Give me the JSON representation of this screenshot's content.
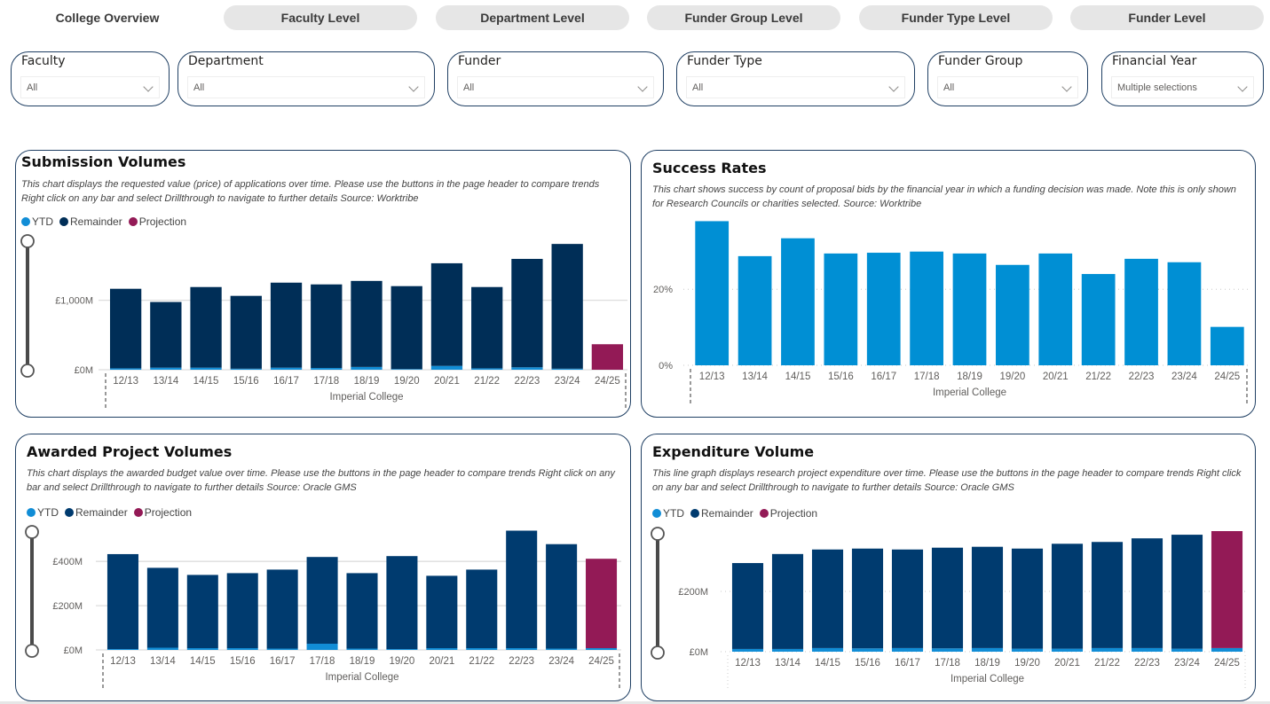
{
  "nav": {
    "tabs": [
      {
        "label": "College Overview",
        "active": true
      },
      {
        "label": "Faculty Level",
        "active": false
      },
      {
        "label": "Department Level",
        "active": false
      },
      {
        "label": "Funder Group Level",
        "active": false
      },
      {
        "label": "Funder Type Level",
        "active": false
      },
      {
        "label": "Funder Level",
        "active": false
      }
    ]
  },
  "slicers": [
    {
      "label": "Faculty",
      "value": "All"
    },
    {
      "label": "Department",
      "value": "All"
    },
    {
      "label": "Funder",
      "value": "All"
    },
    {
      "label": "Funder Type",
      "value": "All"
    },
    {
      "label": "Funder Group",
      "value": "All"
    },
    {
      "label": "Financial Year",
      "value": "Multiple selections"
    }
  ],
  "colors": {
    "ytd": "#118dd6",
    "remainder_submission": "#002e57",
    "remainder": "#003b6f",
    "projection": "#931a56",
    "success": "#008fd4",
    "border": "#1f3f63"
  },
  "legend": {
    "ytd": "YTD",
    "remainder": "Remainder",
    "projection": "Projection"
  },
  "chart_data": [
    {
      "id": "submission",
      "type": "bar",
      "stacked": true,
      "title": "Submission Volumes",
      "description": "This chart displays the requested value (price) of applications over time. Please use the buttons in the page header to compare trends Right click on any bar and select Drillthrough to navigate to further details Source: Worktribe",
      "categories": [
        "12/13",
        "13/14",
        "14/15",
        "15/16",
        "16/17",
        "17/18",
        "18/19",
        "19/20",
        "20/21",
        "21/22",
        "22/23",
        "23/24",
        "24/25"
      ],
      "series": [
        {
          "name": "YTD",
          "values": [
            20,
            30,
            30,
            15,
            30,
            25,
            40,
            10,
            55,
            20,
            35,
            15,
            0
          ]
        },
        {
          "name": "Remainder",
          "values": [
            1145,
            945,
            1160,
            1048,
            1223,
            1203,
            1238,
            1193,
            1477,
            1170,
            1560,
            1795,
            0
          ]
        },
        {
          "name": "Projection",
          "values": [
            0,
            0,
            0,
            0,
            0,
            0,
            0,
            0,
            0,
            0,
            0,
            0,
            367
          ]
        }
      ],
      "xlabel": "Imperial College",
      "ylabel": "",
      "yticks": [
        {
          "value": 0,
          "label": "£0M"
        },
        {
          "value": 1000,
          "label": "£1,000M"
        }
      ],
      "ylim": [
        0,
        1850
      ],
      "grid": true,
      "legend_position": "top-left"
    },
    {
      "id": "success",
      "type": "bar",
      "title": "Success Rates",
      "description": "This chart shows success by count of proposal bids by the financial year in which a funding decision was made. Note this is only shown for Research Councils or charities selected. Source: Worktribe",
      "categories": [
        "12/13",
        "13/14",
        "14/15",
        "15/16",
        "16/17",
        "17/18",
        "18/19",
        "19/20",
        "20/21",
        "21/22",
        "22/23",
        "23/24",
        "24/25"
      ],
      "values": [
        37.9,
        28.7,
        33.4,
        29.4,
        29.6,
        29.9,
        29.4,
        26.4,
        29.4,
        24.0,
        28.0,
        27.1,
        10.1
      ],
      "xlabel": "Imperial College",
      "ylabel": "",
      "yticks": [
        {
          "value": 0,
          "label": "0%"
        },
        {
          "value": 20,
          "label": "20%"
        }
      ],
      "ylim": [
        0,
        38
      ],
      "grid": true
    },
    {
      "id": "awarded",
      "type": "bar",
      "stacked": true,
      "title": "Awarded Project Volumes",
      "description": "This chart displays the awarded budget value over time. Please use the buttons in the page header to compare trends Right click on any bar and select Drillthrough to navigate to further details Source: Oracle GMS",
      "categories": [
        "12/13",
        "13/14",
        "14/15",
        "15/16",
        "16/17",
        "17/18",
        "18/19",
        "19/20",
        "20/21",
        "21/22",
        "22/23",
        "23/24",
        "24/25"
      ],
      "series": [
        {
          "name": "YTD",
          "values": [
            4,
            10,
            8,
            8,
            6,
            28,
            6,
            4,
            8,
            8,
            8,
            6,
            8
          ]
        },
        {
          "name": "Remainder",
          "values": [
            429,
            361,
            331,
            339,
            357,
            392,
            341,
            420,
            327,
            355,
            531,
            472,
            0
          ]
        },
        {
          "name": "Projection",
          "values": [
            0,
            0,
            0,
            0,
            0,
            0,
            0,
            0,
            0,
            0,
            0,
            0,
            404
          ]
        }
      ],
      "xlabel": "Imperial College",
      "ylabel": "",
      "yticks": [
        {
          "value": 0,
          "label": "£0M"
        },
        {
          "value": 200,
          "label": "£200M"
        },
        {
          "value": 400,
          "label": "£400M"
        }
      ],
      "ylim": [
        0,
        545
      ],
      "grid": true,
      "legend_position": "top-left"
    },
    {
      "id": "expenditure",
      "type": "bar",
      "stacked": true,
      "title": "Expenditure Volume",
      "description": "This line graph displays research project expenditure over time. Please use the buttons in the page header to compare trends Right click on any bar and select Drillthrough to navigate to further details Source: Oracle GMS",
      "categories": [
        "12/13",
        "13/14",
        "14/15",
        "15/16",
        "16/17",
        "17/18",
        "18/19",
        "19/20",
        "20/21",
        "21/22",
        "22/23",
        "23/24",
        "24/25"
      ],
      "series": [
        {
          "name": "YTD",
          "values": [
            9,
            9,
            12,
            11,
            12,
            11,
            12,
            10,
            10,
            12,
            12,
            10,
            12
          ]
        },
        {
          "name": "Remainder",
          "values": [
            285,
            315,
            327,
            331,
            327,
            334,
            336,
            332,
            348,
            352,
            364,
            378,
            0
          ]
        },
        {
          "name": "Projection",
          "values": [
            0,
            0,
            0,
            0,
            0,
            0,
            0,
            0,
            0,
            0,
            0,
            0,
            388
          ]
        }
      ],
      "xlabel": "Imperial College",
      "ylabel": "",
      "yticks": [
        {
          "value": 0,
          "label": "£0M"
        },
        {
          "value": 200,
          "label": "£200M"
        }
      ],
      "ylim": [
        0,
        400
      ],
      "grid": true,
      "legend_position": "top-left"
    }
  ]
}
